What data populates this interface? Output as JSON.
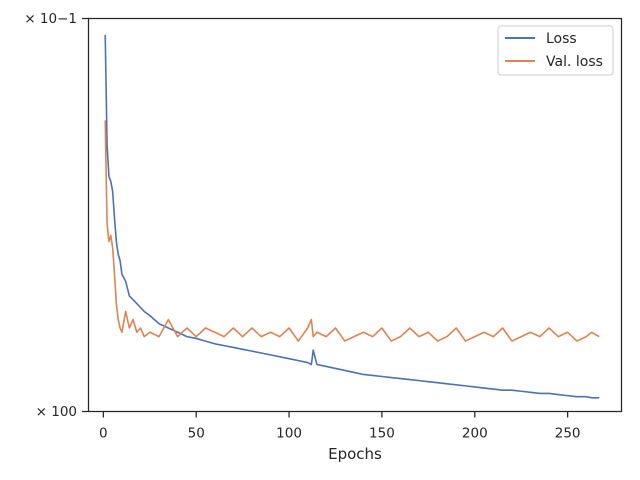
{
  "chart_data": {
    "type": "line",
    "title": "",
    "xlabel": "Epochs",
    "ylabel": "",
    "xlim": [
      -8,
      279
    ],
    "x_ticks": [
      0,
      50,
      100,
      150,
      200,
      250
    ],
    "x_tick_labels": [
      "0",
      "50",
      "100",
      "150",
      "200",
      "250"
    ],
    "y_scale": "log",
    "y_tick_labels": [
      "× 10−1",
      "× 100"
    ],
    "grid": false,
    "legend": "top-right",
    "x": [
      1,
      2,
      3,
      4,
      5,
      6,
      7,
      8,
      9,
      10,
      12,
      14,
      16,
      18,
      20,
      22,
      25,
      30,
      35,
      40,
      45,
      50,
      55,
      60,
      65,
      70,
      75,
      80,
      85,
      90,
      95,
      100,
      105,
      110,
      112,
      113,
      115,
      120,
      125,
      130,
      135,
      140,
      145,
      150,
      155,
      160,
      165,
      170,
      175,
      180,
      185,
      190,
      195,
      200,
      205,
      210,
      215,
      220,
      225,
      230,
      235,
      240,
      245,
      250,
      255,
      260,
      263,
      267
    ],
    "series": [
      {
        "name": "Loss",
        "color": "#4c72b0",
        "values": [
          0.94,
          0.62,
          0.55,
          0.54,
          0.52,
          0.47,
          0.43,
          0.41,
          0.4,
          0.38,
          0.37,
          0.35,
          0.345,
          0.34,
          0.335,
          0.33,
          0.325,
          0.315,
          0.31,
          0.305,
          0.3,
          0.298,
          0.295,
          0.292,
          0.29,
          0.288,
          0.286,
          0.284,
          0.282,
          0.28,
          0.278,
          0.276,
          0.274,
          0.272,
          0.27,
          0.285,
          0.27,
          0.268,
          0.266,
          0.264,
          0.262,
          0.26,
          0.259,
          0.258,
          0.257,
          0.256,
          0.255,
          0.254,
          0.253,
          0.252,
          0.251,
          0.25,
          0.249,
          0.248,
          0.247,
          0.246,
          0.245,
          0.245,
          0.244,
          0.243,
          0.242,
          0.242,
          0.241,
          0.24,
          0.239,
          0.239,
          0.238,
          0.238
        ]
      },
      {
        "name": "Val. loss",
        "color": "#dd8452",
        "values": [
          0.68,
          0.46,
          0.43,
          0.44,
          0.42,
          0.38,
          0.34,
          0.32,
          0.31,
          0.305,
          0.33,
          0.31,
          0.32,
          0.305,
          0.31,
          0.3,
          0.305,
          0.3,
          0.32,
          0.3,
          0.31,
          0.3,
          0.31,
          0.305,
          0.3,
          0.31,
          0.3,
          0.31,
          0.3,
          0.305,
          0.3,
          0.31,
          0.295,
          0.31,
          0.32,
          0.3,
          0.305,
          0.3,
          0.31,
          0.295,
          0.3,
          0.305,
          0.3,
          0.31,
          0.295,
          0.3,
          0.31,
          0.3,
          0.305,
          0.295,
          0.3,
          0.31,
          0.295,
          0.3,
          0.305,
          0.3,
          0.31,
          0.295,
          0.3,
          0.305,
          0.3,
          0.31,
          0.3,
          0.305,
          0.295,
          0.3,
          0.305,
          0.3
        ]
      }
    ]
  }
}
